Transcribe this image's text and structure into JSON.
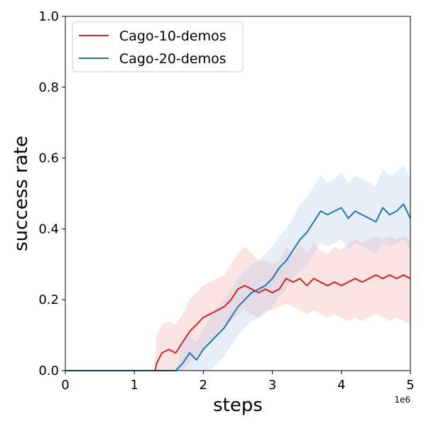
{
  "chart_data": {
    "type": "line",
    "title": "",
    "xlabel": "steps",
    "ylabel": "success rate",
    "x_offset_label": "1e6",
    "xlim": [
      0,
      5
    ],
    "ylim": [
      0,
      1.0
    ],
    "xticks": [
      0,
      1,
      2,
      3,
      4,
      5
    ],
    "xtick_labels": [
      "0",
      "1",
      "2",
      "3",
      "4",
      "5"
    ],
    "yticks": [
      0.0,
      0.2,
      0.4,
      0.6,
      0.8,
      1.0
    ],
    "ytick_labels": [
      "0.0",
      "0.2",
      "0.4",
      "0.6",
      "0.8",
      "1.0"
    ],
    "grid": false,
    "legend_position": "top-left",
    "series": [
      {
        "name": "Cago-10-demos",
        "color": "#d62728",
        "band_color": "#f4a6a6",
        "x": [
          0,
          1.0,
          1.3,
          1.32,
          1.4,
          1.5,
          1.6,
          1.7,
          1.8,
          1.9,
          2.0,
          2.1,
          2.2,
          2.3,
          2.4,
          2.5,
          2.6,
          2.7,
          2.8,
          2.9,
          3.0,
          3.1,
          3.2,
          3.3,
          3.4,
          3.5,
          3.6,
          3.7,
          3.8,
          3.9,
          4.0,
          4.1,
          4.2,
          4.3,
          4.4,
          4.5,
          4.6,
          4.7,
          4.8,
          4.9,
          5.0
        ],
        "y": [
          0,
          0,
          0,
          0.02,
          0.05,
          0.06,
          0.05,
          0.08,
          0.11,
          0.13,
          0.15,
          0.16,
          0.17,
          0.18,
          0.2,
          0.23,
          0.24,
          0.23,
          0.22,
          0.23,
          0.22,
          0.23,
          0.26,
          0.25,
          0.26,
          0.24,
          0.26,
          0.25,
          0.24,
          0.25,
          0.24,
          0.25,
          0.26,
          0.25,
          0.26,
          0.27,
          0.26,
          0.27,
          0.26,
          0.27,
          0.26
        ],
        "y_lower": [
          0,
          0,
          0,
          0,
          0.0,
          0.0,
          0.0,
          0.0,
          0.02,
          0.04,
          0.06,
          0.08,
          0.1,
          0.12,
          0.14,
          0.16,
          0.17,
          0.16,
          0.15,
          0.17,
          0.17,
          0.18,
          0.19,
          0.18,
          0.17,
          0.16,
          0.17,
          0.16,
          0.15,
          0.16,
          0.15,
          0.14,
          0.15,
          0.14,
          0.15,
          0.16,
          0.15,
          0.14,
          0.15,
          0.14,
          0.13
        ],
        "y_upper": [
          0,
          0,
          0,
          0.1,
          0.13,
          0.14,
          0.13,
          0.16,
          0.2,
          0.22,
          0.24,
          0.25,
          0.26,
          0.27,
          0.3,
          0.33,
          0.35,
          0.33,
          0.31,
          0.31,
          0.3,
          0.31,
          0.35,
          0.33,
          0.36,
          0.33,
          0.36,
          0.34,
          0.33,
          0.35,
          0.34,
          0.36,
          0.37,
          0.36,
          0.37,
          0.38,
          0.37,
          0.38,
          0.37,
          0.38,
          0.37
        ]
      },
      {
        "name": "Cago-20-demos",
        "color": "#1f77b4",
        "band_color": "#aec7e8",
        "x": [
          0,
          1.0,
          1.6,
          1.65,
          1.7,
          1.8,
          1.9,
          2.0,
          2.1,
          2.2,
          2.3,
          2.4,
          2.5,
          2.6,
          2.7,
          2.8,
          2.9,
          3.0,
          3.1,
          3.2,
          3.3,
          3.4,
          3.5,
          3.6,
          3.7,
          3.8,
          3.9,
          4.0,
          4.1,
          4.2,
          4.3,
          4.4,
          4.5,
          4.6,
          4.7,
          4.8,
          4.9,
          5.0
        ],
        "y": [
          0,
          0,
          0,
          0.01,
          0.02,
          0.05,
          0.03,
          0.06,
          0.08,
          0.1,
          0.12,
          0.15,
          0.18,
          0.2,
          0.22,
          0.23,
          0.24,
          0.26,
          0.29,
          0.31,
          0.34,
          0.37,
          0.39,
          0.42,
          0.45,
          0.44,
          0.45,
          0.46,
          0.43,
          0.45,
          0.44,
          0.43,
          0.42,
          0.46,
          0.44,
          0.45,
          0.47,
          0.43
        ],
        "y_lower": [
          0,
          0,
          0,
          0.0,
          0.0,
          0.0,
          0.0,
          0.0,
          0.0,
          0.02,
          0.04,
          0.07,
          0.1,
          0.12,
          0.14,
          0.15,
          0.16,
          0.18,
          0.21,
          0.23,
          0.26,
          0.28,
          0.3,
          0.33,
          0.36,
          0.35,
          0.36,
          0.37,
          0.34,
          0.36,
          0.35,
          0.34,
          0.33,
          0.36,
          0.35,
          0.36,
          0.37,
          0.34
        ],
        "y_upper": [
          0,
          0,
          0,
          0.04,
          0.07,
          0.1,
          0.08,
          0.12,
          0.15,
          0.18,
          0.2,
          0.23,
          0.26,
          0.28,
          0.3,
          0.31,
          0.33,
          0.35,
          0.38,
          0.4,
          0.43,
          0.47,
          0.49,
          0.52,
          0.55,
          0.53,
          0.54,
          0.56,
          0.53,
          0.55,
          0.54,
          0.53,
          0.52,
          0.57,
          0.55,
          0.56,
          0.58,
          0.54
        ]
      }
    ]
  }
}
